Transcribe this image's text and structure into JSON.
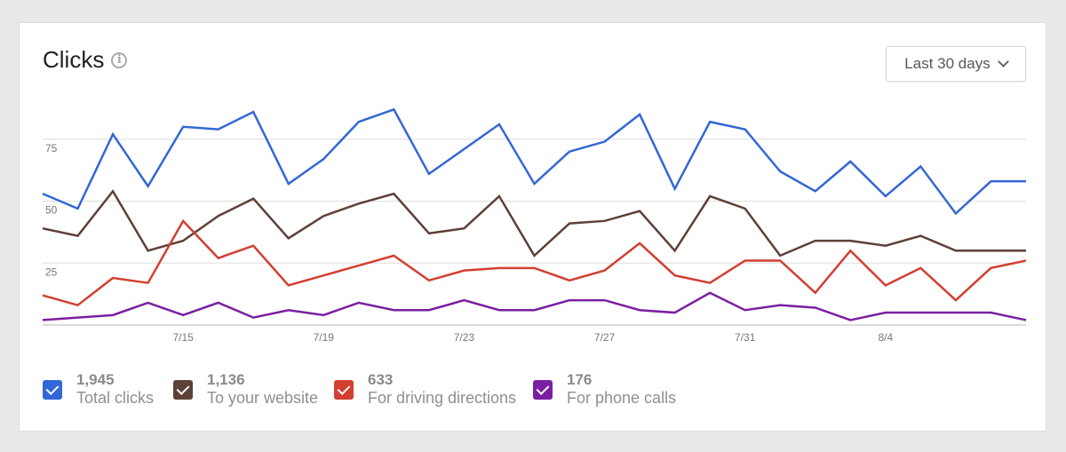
{
  "header": {
    "title": "Clicks",
    "info_icon": "info-icon",
    "range_label": "Last 30 days"
  },
  "chart_data": {
    "type": "line",
    "title": "Clicks",
    "x": [
      "7/11",
      "7/12",
      "7/13",
      "7/14",
      "7/15",
      "7/16",
      "7/17",
      "7/18",
      "7/19",
      "7/20",
      "7/21",
      "7/22",
      "7/23",
      "7/24",
      "7/25",
      "7/26",
      "7/27",
      "7/28",
      "7/29",
      "7/30",
      "7/31",
      "8/1",
      "8/2",
      "8/3",
      "8/4",
      "8/5",
      "8/6",
      "8/7",
      "8/8"
    ],
    "xticks": [
      "7/15",
      "7/19",
      "7/23",
      "7/27",
      "7/31",
      "8/4"
    ],
    "yticks": [
      25,
      50,
      75
    ],
    "ylim": [
      0,
      100
    ],
    "grid": true,
    "series": [
      {
        "name": "Total clicks",
        "total": "1,945",
        "color": "#3367d6",
        "values": [
          53,
          47,
          77,
          56,
          80,
          79,
          86,
          57,
          67,
          82,
          87,
          61,
          71,
          81,
          57,
          70,
          74,
          85,
          55,
          82,
          79,
          62,
          54,
          66,
          52,
          64,
          45,
          58,
          58
        ]
      },
      {
        "name": "To your website",
        "total": "1,136",
        "color": "#5d4037",
        "values": [
          39,
          36,
          54,
          30,
          34,
          44,
          51,
          35,
          44,
          49,
          53,
          37,
          39,
          52,
          28,
          41,
          42,
          46,
          30,
          52,
          47,
          28,
          34,
          34,
          32,
          36,
          30,
          30,
          30
        ]
      },
      {
        "name": "For driving directions",
        "total": "633",
        "color": "#d23f31",
        "values": [
          12,
          8,
          19,
          17,
          42,
          27,
          32,
          16,
          20,
          24,
          28,
          18,
          22,
          23,
          23,
          18,
          22,
          33,
          20,
          17,
          26,
          26,
          13,
          30,
          16,
          23,
          10,
          23,
          26
        ]
      },
      {
        "name": "For phone calls",
        "total": "176",
        "color": "#7b1fa2",
        "values": [
          2,
          3,
          4,
          9,
          4,
          9,
          3,
          6,
          4,
          9,
          6,
          6,
          10,
          6,
          6,
          10,
          10,
          6,
          5,
          13,
          6,
          8,
          7,
          2,
          5,
          5,
          5,
          5,
          2
        ]
      }
    ]
  }
}
